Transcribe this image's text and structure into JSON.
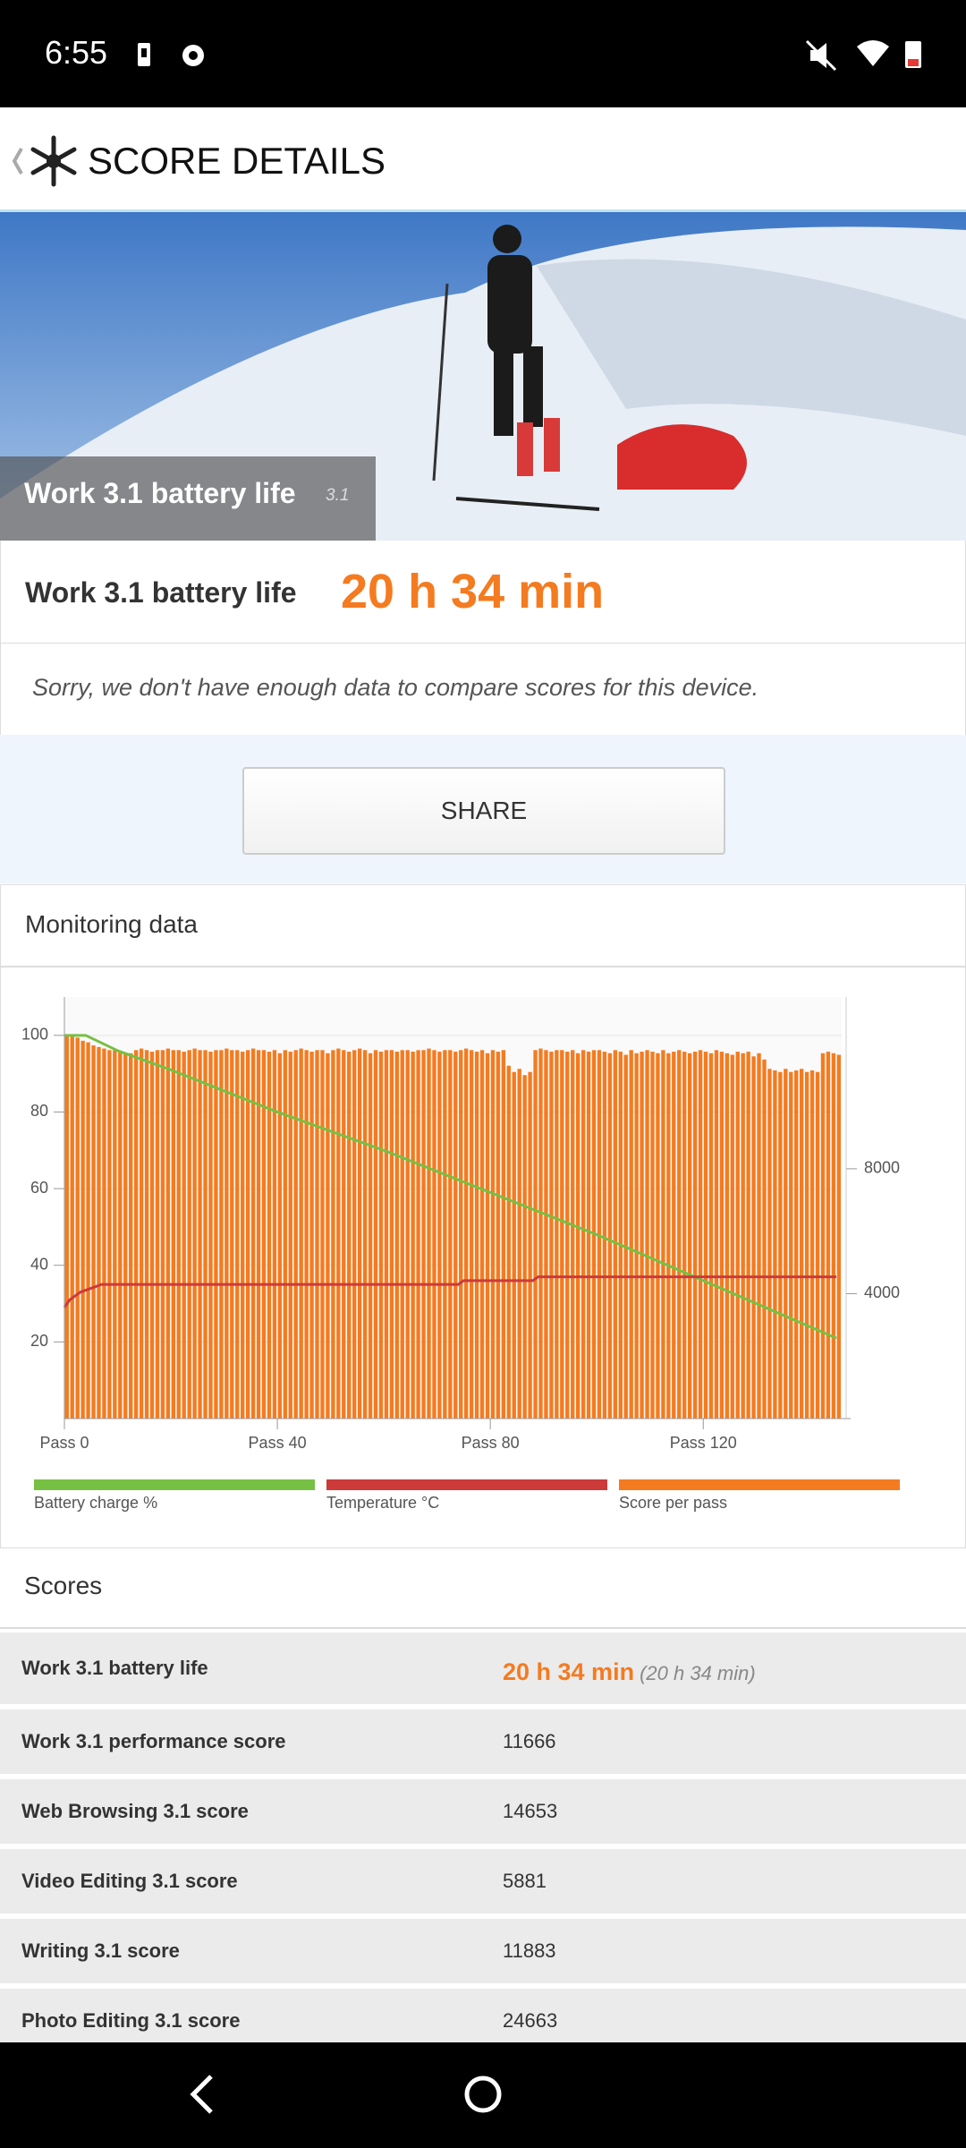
{
  "status_bar": {
    "time": "6:55"
  },
  "header": {
    "title": "SCORE DETAILS"
  },
  "hero": {
    "title": "Work 3.1 battery life",
    "version": "3.1"
  },
  "result": {
    "label": "Work 3.1 battery life",
    "value": "20 h 34 min"
  },
  "notice": "Sorry, we don't have enough data to compare scores for this device.",
  "share_button": "SHARE",
  "monitoring": {
    "title": "Monitoring data"
  },
  "chart_data": {
    "type": "bar",
    "grid": true,
    "xlim": [
      0,
      146
    ],
    "xticks": [
      {
        "value": 0,
        "label": "Pass 0"
      },
      {
        "value": 40,
        "label": "Pass 40"
      },
      {
        "value": 80,
        "label": "Pass 80"
      },
      {
        "value": 120,
        "label": "Pass 120"
      }
    ],
    "ylim": [
      0,
      110
    ],
    "yticks": [
      20,
      40,
      60,
      80,
      100
    ],
    "y2lim": [
      0,
      13500
    ],
    "y2ticks": [
      4000,
      8000
    ],
    "series": [
      {
        "name": "Battery charge %",
        "color": "#76c043",
        "type": "line",
        "x": [
          0,
          4,
          10,
          20,
          40,
          60,
          80,
          100,
          120,
          140,
          145
        ],
        "values": [
          100,
          100,
          96,
          91,
          80,
          70,
          59,
          48,
          36,
          24,
          21
        ]
      },
      {
        "name": "Temperature °C",
        "color": "#cc3a3a",
        "type": "line",
        "x": [
          0,
          1,
          3,
          5,
          7,
          74,
          75,
          88,
          89,
          145
        ],
        "values": [
          29,
          31,
          33,
          34,
          35,
          35,
          36,
          36,
          37,
          37
        ]
      },
      {
        "name": "Score per pass",
        "color": "#f47b20",
        "type": "bar",
        "axis": "y2",
        "values": [
          12300,
          12250,
          12200,
          12100,
          12050,
          11950,
          11900,
          11850,
          11800,
          11800,
          11750,
          11700,
          11700,
          11800,
          11850,
          11800,
          11750,
          11800,
          11800,
          11850,
          11800,
          11800,
          11750,
          11800,
          11850,
          11800,
          11800,
          11750,
          11800,
          11800,
          11850,
          11800,
          11800,
          11750,
          11800,
          11850,
          11800,
          11800,
          11750,
          11800,
          11700,
          11800,
          11750,
          11800,
          11850,
          11800,
          11750,
          11800,
          11800,
          11700,
          11800,
          11850,
          11800,
          11750,
          11800,
          11850,
          11800,
          11700,
          11800,
          11750,
          11800,
          11800,
          11750,
          11800,
          11800,
          11750,
          11800,
          11800,
          11850,
          11800,
          11750,
          11800,
          11800,
          11750,
          11800,
          11850,
          11800,
          11750,
          11800,
          11700,
          11800,
          11750,
          11800,
          11300,
          11100,
          11200,
          11000,
          11100,
          11800,
          11850,
          11800,
          11750,
          11800,
          11800,
          11750,
          11800,
          11700,
          11800,
          11750,
          11800,
          11800,
          11750,
          11700,
          11800,
          11750,
          11650,
          11800,
          11700,
          11750,
          11800,
          11750,
          11700,
          11800,
          11700,
          11750,
          11800,
          11750,
          11700,
          11750,
          11800,
          11750,
          11700,
          11800,
          11750,
          11700,
          11650,
          11750,
          11700,
          11750,
          11600,
          11700,
          11500,
          11200,
          11150,
          11100,
          11200,
          11100,
          11150,
          11200,
          11100,
          11150,
          11100,
          11700,
          11750,
          11700,
          11650
        ]
      }
    ]
  },
  "scores": {
    "title": "Scores",
    "rows": [
      {
        "label": "Work 3.1 battery life",
        "value": "20 h 34 min",
        "note": "(20 h 34 min)"
      },
      {
        "label": "Work 3.1 performance score",
        "value": 11666
      },
      {
        "label": "Web Browsing 3.1 score",
        "value": 14653
      },
      {
        "label": "Video Editing 3.1 score",
        "value": 5881
      },
      {
        "label": "Writing 3.1 score",
        "value": 11883
      },
      {
        "label": "Photo Editing 3.1 score",
        "value": 24663
      }
    ]
  }
}
